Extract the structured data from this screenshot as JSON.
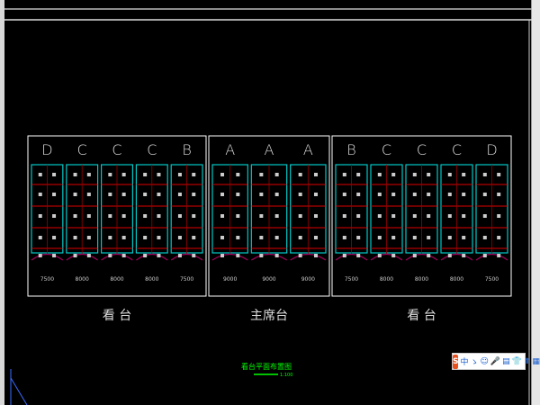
{
  "colors": {
    "background": "#000000",
    "frame": "#ffffff",
    "column": "#00c8c8",
    "grid": "#e00000",
    "arc": "#a0005a",
    "title": "#00ff00"
  },
  "sections": [
    {
      "name": "left-stand",
      "columns": [
        "D",
        "C",
        "C",
        "C",
        "B"
      ],
      "widths": [
        "7500",
        "8000",
        "8000",
        "8000",
        "7500"
      ],
      "caption": "看  台"
    },
    {
      "name": "rostrum",
      "columns": [
        "A",
        "A",
        "A"
      ],
      "widths": [
        "9000",
        "9000",
        "9000"
      ],
      "caption": "主席台"
    },
    {
      "name": "right-stand",
      "columns": [
        "B",
        "C",
        "C",
        "C",
        "D"
      ],
      "widths": [
        "7500",
        "8000",
        "8000",
        "8000",
        "7500"
      ],
      "caption": "看  台"
    }
  ],
  "drawing_title": "看台平面布置图",
  "drawing_scale": "1:100",
  "ime_toolbar": {
    "logo": "S",
    "mode": "中",
    "items": [
      "ゝ",
      "☺",
      "🎤",
      "▤",
      "👕",
      "⬆",
      "▦"
    ]
  }
}
